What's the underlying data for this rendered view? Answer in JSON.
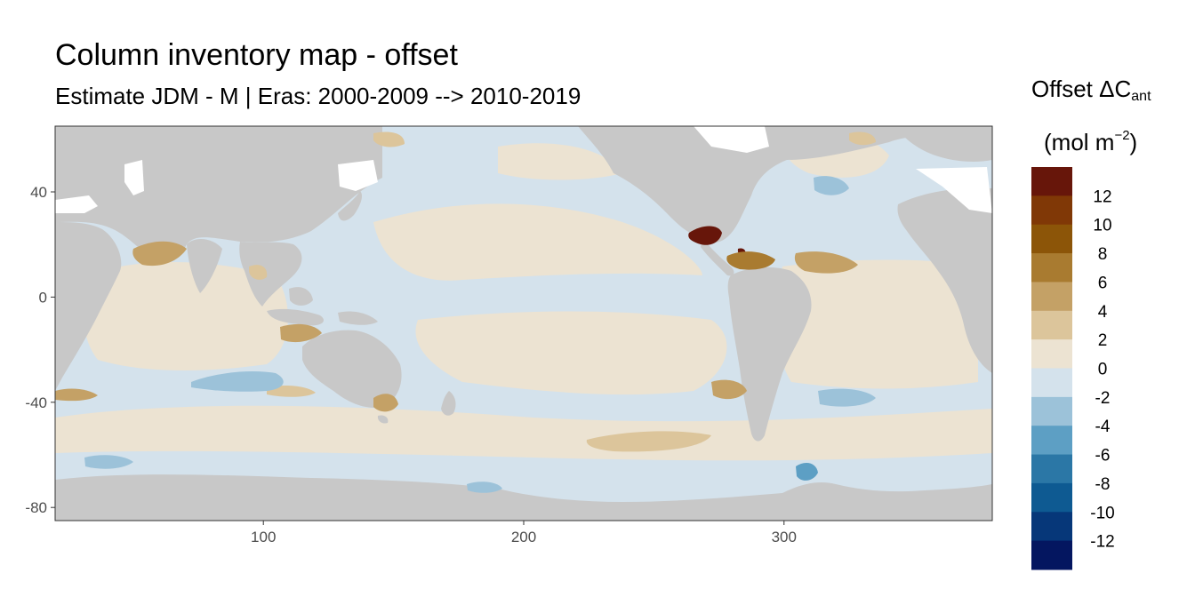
{
  "title": "Column inventory map - offset",
  "subtitle": "Estimate JDM - M | Eras: 2000-2009 --> 2010-2019",
  "legend": {
    "title_main": "Offset ΔC",
    "title_sub": "ant",
    "unit_prefix": "(mol m",
    "unit_sup": "−2",
    "unit_suffix": ")",
    "placement": "right",
    "bins": [
      {
        "label": "12",
        "color": "#67160a"
      },
      {
        "label": "10",
        "color": "#803806"
      },
      {
        "label": "8",
        "color": "#8c5508"
      },
      {
        "label": "6",
        "color": "#a97b30"
      },
      {
        "label": "4",
        "color": "#c4a166"
      },
      {
        "label": "2",
        "color": "#dcc59b"
      },
      {
        "label": "0",
        "color": "#ece3d2"
      },
      {
        "label": "-2",
        "color": "#d4e2ec"
      },
      {
        "label": "-4",
        "color": "#9cc2d9"
      },
      {
        "label": "-6",
        "color": "#5d9fc4"
      },
      {
        "label": "-8",
        "color": "#2b77a6"
      },
      {
        "label": "-10",
        "color": "#0e5a92"
      },
      {
        "label": "-12",
        "color": "#063779"
      },
      {
        "label": "",
        "color": "#041660"
      }
    ]
  },
  "chart_data": {
    "type": "heatmap",
    "title": "Column inventory map - offset",
    "xlim": [
      20,
      380
    ],
    "ylim": [
      -85,
      65
    ],
    "x_ticks": [
      "100",
      "200",
      "300"
    ],
    "y_ticks": [
      "40",
      "0",
      "-40",
      "-80"
    ],
    "land_color": "#c8c8c8",
    "background_value_range": [
      -2,
      2
    ]
  }
}
